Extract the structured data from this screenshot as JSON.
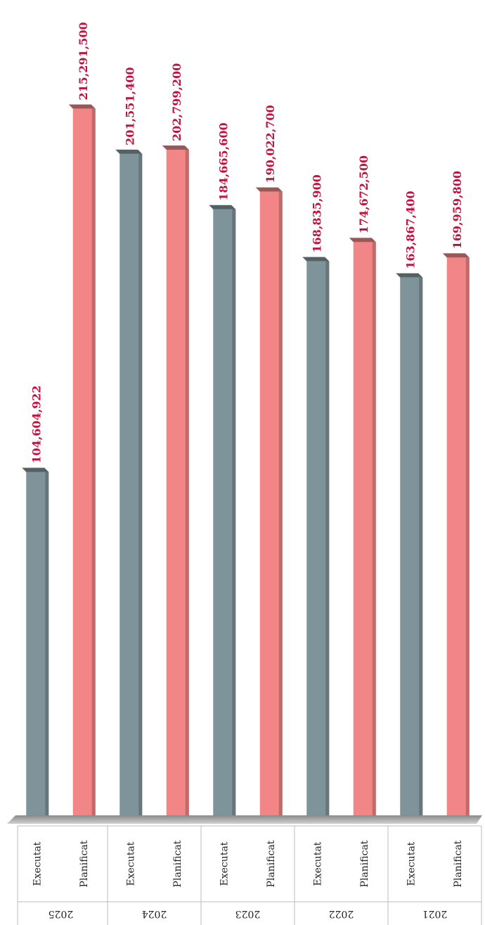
{
  "chart_data": {
    "type": "bar",
    "categories": [
      "2025",
      "2024",
      "2023",
      "2022",
      "2021"
    ],
    "series": [
      {
        "name": "Executat",
        "color": "#7f949a",
        "values": [
          104604922,
          201551400,
          184665600,
          168835900,
          163867400
        ],
        "value_labels": [
          "104,604,922",
          "201,551,400",
          "184,665,600",
          "168,835,900",
          "163,867,400"
        ]
      },
      {
        "name": "Planificat",
        "color": "#f28585",
        "values": [
          215291500,
          202799200,
          190022700,
          174672500,
          169959800
        ],
        "value_labels": [
          "215,291,500",
          "202,799,200",
          "190,022,700",
          "174,672,500",
          "169,959,800"
        ]
      }
    ],
    "ylim": [
      0,
      230000000
    ]
  }
}
